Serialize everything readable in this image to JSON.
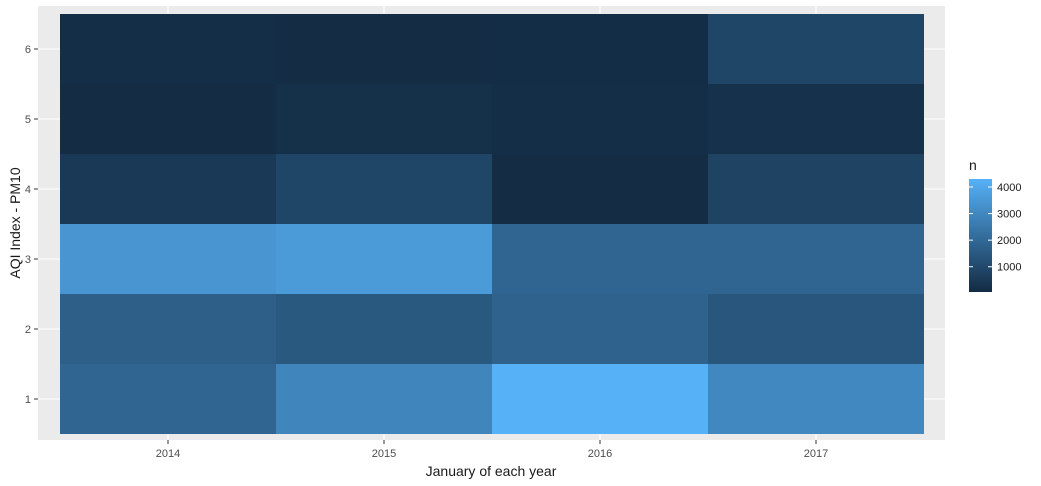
{
  "chart_data": {
    "type": "heatmap",
    "title": "",
    "xlabel": "January of each year",
    "ylabel": "AQI Index - PM10",
    "x_categories": [
      "2014",
      "2015",
      "2016",
      "2017"
    ],
    "y_categories": [
      "1",
      "2",
      "3",
      "4",
      "5",
      "6"
    ],
    "values": [
      [
        1900,
        2900,
        4300,
        3000
      ],
      [
        1700,
        1500,
        1800,
        1400
      ],
      [
        3400,
        3600,
        1900,
        1900
      ],
      [
        500,
        900,
        100,
        800
      ],
      [
        100,
        200,
        150,
        250
      ],
      [
        150,
        100,
        120,
        900
      ]
    ],
    "grid": true,
    "legend": {
      "title": "n",
      "position": "right",
      "ticks": [
        1000,
        2000,
        3000,
        4000
      ],
      "range": [
        50,
        4300
      ],
      "colors": {
        "low": "#132B43",
        "high": "#56B1F7"
      }
    },
    "panel_background": "#EBEBEB",
    "gridline_color": "#FFFFFF"
  }
}
